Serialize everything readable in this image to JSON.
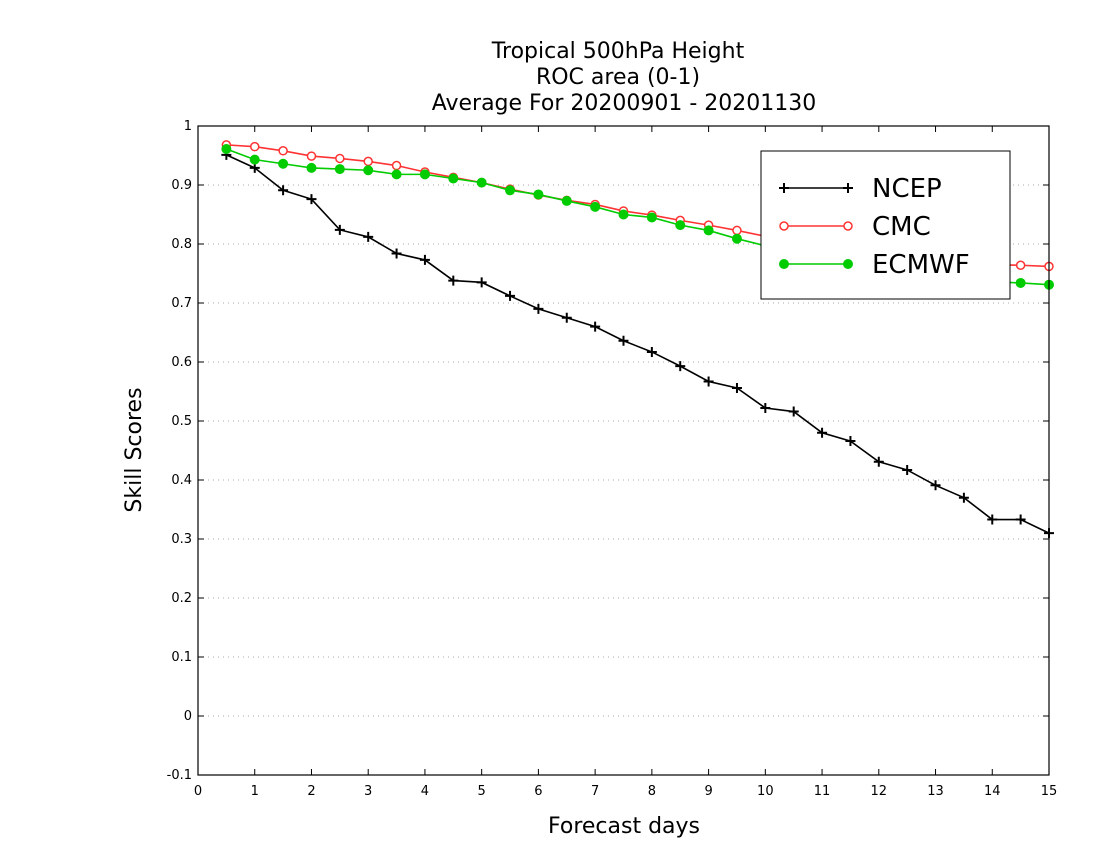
{
  "chart_data": {
    "type": "line",
    "title": [
      "Tropical 500hPa Height",
      "ROC area (0-1)",
      "Average For 20200901 - 20201130"
    ],
    "xlabel": "Forecast days",
    "ylabel": "Skill Scores",
    "xlim": [
      0,
      15
    ],
    "ylim": [
      -0.1,
      1
    ],
    "x_ticks": [
      "0",
      "1",
      "2",
      "3",
      "4",
      "5",
      "6",
      "7",
      "8",
      "9",
      "10",
      "11",
      "12",
      "13",
      "14",
      "15"
    ],
    "y_ticks": [
      "-0.1",
      "0",
      "0.1",
      "0.2",
      "0.3",
      "0.4",
      "0.5",
      "0.6",
      "0.7",
      "0.8",
      "0.9",
      "1"
    ],
    "grid": "horizontal-dotted",
    "legend_position": "top-right",
    "x": [
      0.5,
      1,
      1.5,
      2,
      2.5,
      3,
      3.5,
      4,
      4.5,
      5,
      5.5,
      6,
      6.5,
      7,
      7.5,
      8,
      8.5,
      9,
      9.5,
      10,
      10.5,
      11,
      11.5,
      12,
      12.5,
      13,
      13.5,
      14,
      14.5,
      15
    ],
    "series": [
      {
        "name": "NCEP",
        "color": "#000000",
        "marker": "plus",
        "values": [
          0.951,
          0.929,
          0.891,
          0.876,
          0.824,
          0.812,
          0.784,
          0.773,
          0.738,
          0.735,
          0.712,
          0.69,
          0.675,
          0.66,
          0.636,
          0.617,
          0.593,
          0.567,
          0.556,
          0.522,
          0.516,
          0.48,
          0.466,
          0.431,
          0.417,
          0.391,
          0.37,
          0.333,
          0.333,
          0.31
        ]
      },
      {
        "name": "CMC",
        "color": "#ff3333",
        "marker": "open-circle",
        "values": [
          0.968,
          0.965,
          0.958,
          0.949,
          0.945,
          0.94,
          0.933,
          0.922,
          0.913,
          0.904,
          0.893,
          0.883,
          0.874,
          0.867,
          0.856,
          0.849,
          0.84,
          0.832,
          0.823,
          0.813,
          0.805,
          0.797,
          0.79,
          0.784,
          0.778,
          0.772,
          0.768,
          0.765,
          0.764,
          0.762
        ]
      },
      {
        "name": "ECMWF",
        "color": "#00cc00",
        "marker": "filled-circle",
        "values": [
          0.961,
          0.943,
          0.936,
          0.929,
          0.927,
          0.925,
          0.918,
          0.918,
          0.911,
          0.904,
          0.891,
          0.884,
          0.873,
          0.863,
          0.85,
          0.845,
          0.832,
          0.823,
          0.809,
          0.797,
          0.785,
          0.776,
          0.767,
          0.759,
          0.752,
          0.745,
          0.74,
          0.736,
          0.734,
          0.731
        ]
      }
    ]
  }
}
